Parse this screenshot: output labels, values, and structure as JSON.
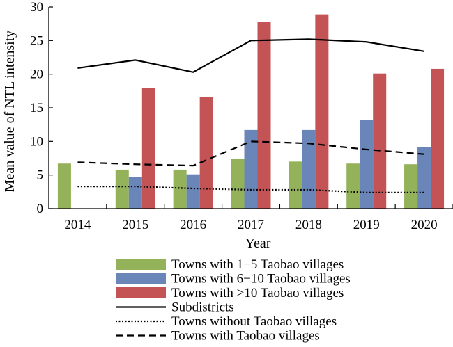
{
  "chart_data": {
    "type": "bar",
    "xlabel": "Year",
    "ylabel": "Mean value of NTL intensity",
    "ylim": [
      0,
      30
    ],
    "yticks": [
      0,
      5,
      10,
      15,
      20,
      25,
      30
    ],
    "categories": [
      "2014",
      "2015",
      "2016",
      "2017",
      "2018",
      "2019",
      "2020"
    ],
    "series": [
      {
        "name": "Towns with 1−5 Taobao villages",
        "kind": "bar",
        "color": "#93b25a",
        "values": [
          6.7,
          5.8,
          5.8,
          7.4,
          7.0,
          6.7,
          6.6
        ]
      },
      {
        "name": "Towns with 6−10 Taobao villages",
        "kind": "bar",
        "color": "#6a85b8",
        "values": [
          null,
          4.7,
          5.1,
          11.7,
          11.7,
          13.2,
          9.2
        ]
      },
      {
        "name": "Towns with >10 Taobao villages",
        "kind": "bar",
        "color": "#c45355",
        "values": [
          null,
          17.9,
          16.6,
          27.8,
          28.9,
          20.1,
          20.8
        ]
      },
      {
        "name": "Subdistricts",
        "kind": "line",
        "style": "solid",
        "color": "#000000",
        "values": [
          20.9,
          22.1,
          20.3,
          25.0,
          25.2,
          24.8,
          23.4
        ]
      },
      {
        "name": "Towns without Taobao villages",
        "kind": "line",
        "style": "dotted",
        "color": "#000000",
        "values": [
          3.3,
          3.3,
          3.0,
          2.8,
          2.8,
          2.4,
          2.4
        ]
      },
      {
        "name": "Towns with Taobao villages",
        "kind": "line",
        "style": "dashed",
        "color": "#000000",
        "values": [
          6.9,
          6.6,
          6.4,
          10.0,
          9.7,
          8.8,
          8.1
        ]
      }
    ],
    "legend_position": "bottom"
  }
}
